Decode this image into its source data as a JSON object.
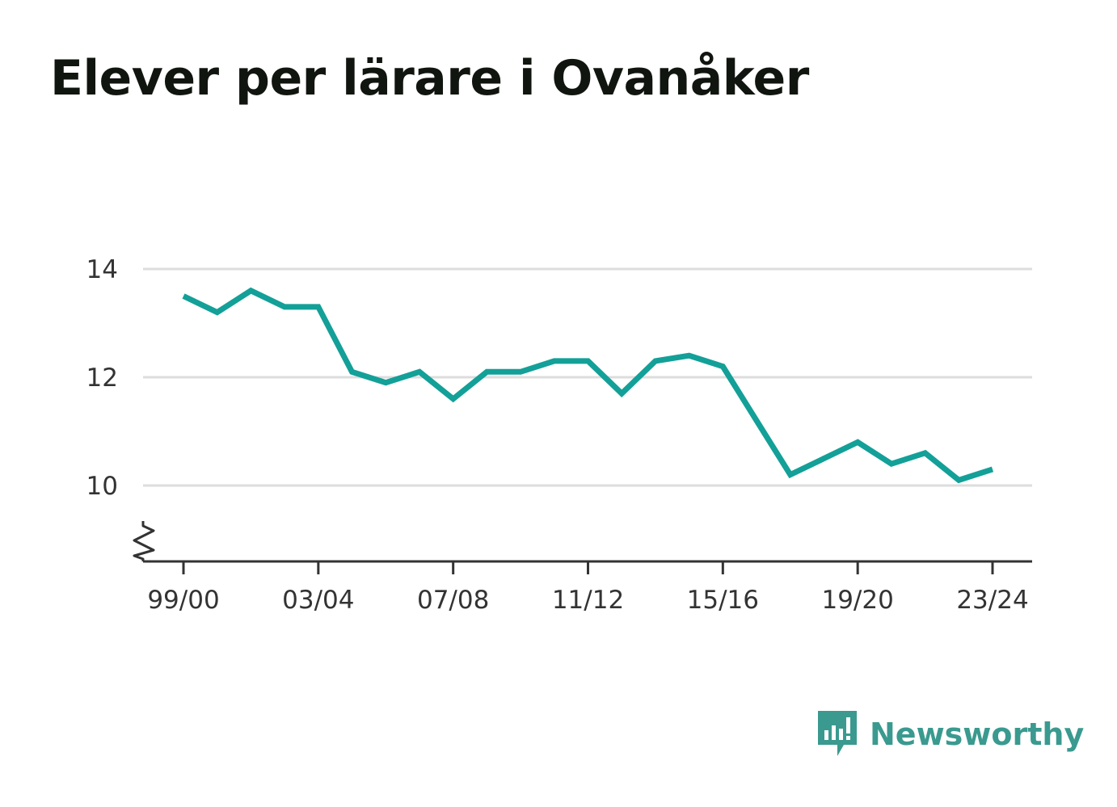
{
  "title": "Elever per lärare i Ovanåker",
  "brand": {
    "name": "Newsworthy",
    "icon": "newsworthy-logo-icon",
    "color": "#3a9a8f"
  },
  "colors": {
    "line": "#13a098",
    "grid": "#dddddd",
    "axis": "#333333"
  },
  "chart_data": {
    "type": "line",
    "title": "Elever per lärare i Ovanåker",
    "xlabel": "",
    "ylabel": "",
    "x": [
      "99/00",
      "00/01",
      "01/02",
      "02/03",
      "03/04",
      "04/05",
      "05/06",
      "06/07",
      "07/08",
      "08/09",
      "09/10",
      "10/11",
      "11/12",
      "12/13",
      "13/14",
      "14/15",
      "15/16",
      "16/17",
      "17/18",
      "18/19",
      "19/20",
      "20/21",
      "21/22",
      "22/23",
      "23/24"
    ],
    "series": [
      {
        "values": [
          13.5,
          13.2,
          13.6,
          13.3,
          13.3,
          12.1,
          11.9,
          12.1,
          11.6,
          12.1,
          12.1,
          12.3,
          12.3,
          11.7,
          12.3,
          12.4,
          12.2,
          11.2,
          10.2,
          10.5,
          10.8,
          10.4,
          10.6,
          10.1,
          10.3
        ]
      }
    ],
    "x_tick_labels": [
      "99/00",
      "03/04",
      "07/08",
      "11/12",
      "15/16",
      "19/20",
      "23/24"
    ],
    "y_ticks": [
      10,
      12,
      14
    ],
    "ylim": [
      8.6,
      14
    ],
    "y_axis_break": true,
    "grid": true,
    "legend": "none"
  }
}
